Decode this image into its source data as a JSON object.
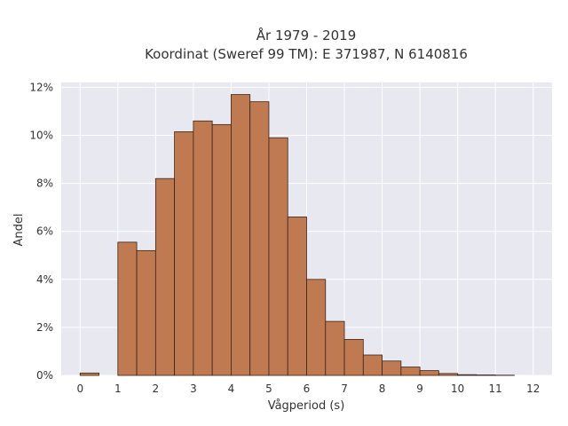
{
  "chart_data": {
    "type": "bar",
    "title_line1": "År 1979 - 2019",
    "title_line2": "Koordinat (Sweref 99 TM): E 371987, N 6140816",
    "xlabel": "Vågperiod (s)",
    "ylabel": "Andel",
    "bin_width": 0.5,
    "x_bins": [
      0,
      1,
      1.5,
      2,
      2.5,
      3,
      3.5,
      4,
      4.5,
      5,
      5.5,
      6,
      6.5,
      7,
      7.5,
      8,
      8.5,
      9,
      9.5,
      10,
      10.5,
      11
    ],
    "values": [
      0.1,
      5.55,
      5.2,
      8.2,
      10.15,
      10.6,
      10.45,
      11.7,
      11.4,
      9.9,
      6.6,
      4.0,
      2.25,
      1.5,
      0.85,
      0.6,
      0.35,
      0.2,
      0.08,
      0.03,
      0.02,
      0.01
    ],
    "xlim": [
      -0.5,
      12.5
    ],
    "ylim": [
      0,
      12.2
    ],
    "x_ticks": [
      0,
      1,
      2,
      3,
      4,
      5,
      6,
      7,
      8,
      9,
      10,
      11,
      12
    ],
    "x_tick_labels": [
      "0",
      "1",
      "2",
      "3",
      "4",
      "5",
      "6",
      "7",
      "8",
      "9",
      "10",
      "11",
      "12"
    ],
    "y_ticks": [
      0,
      2,
      4,
      6,
      8,
      10,
      12
    ],
    "y_tick_labels": [
      "0%",
      "2%",
      "4%",
      "6%",
      "8%",
      "10%",
      "12%"
    ],
    "grid": true,
    "colors": {
      "bar_fill": "#c07a52",
      "bar_stroke": "#3a2418",
      "plot_bg": "#e8e8f0",
      "grid": "#ffffff"
    }
  }
}
